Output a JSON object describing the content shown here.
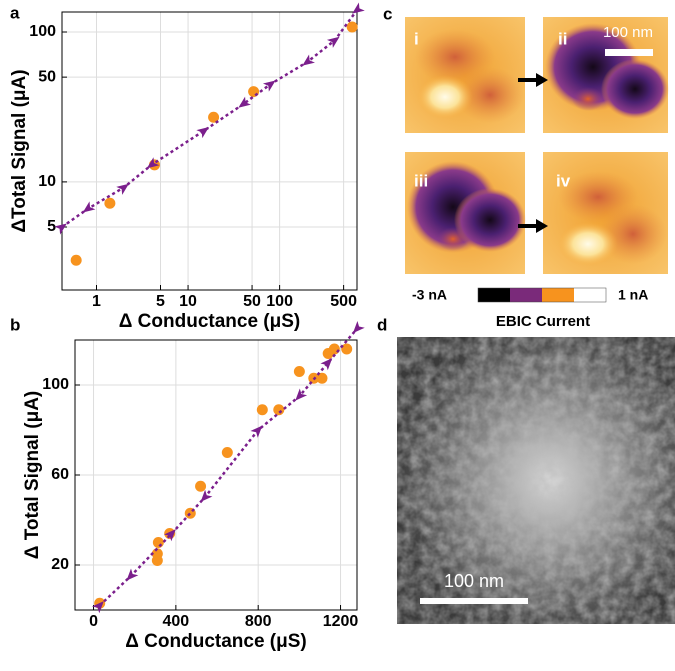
{
  "chart_data": [
    {
      "type": "scatter",
      "panel": "a",
      "xlabel": "Δ Conductance (μS)",
      "ylabel": "ΔTotal Signal (μA)",
      "log_x": true,
      "log_y": true,
      "grid": true,
      "xlim": [
        0.42,
        700
      ],
      "ylim": [
        1.9,
        136
      ],
      "xticks": [
        1,
        5,
        10,
        50,
        100,
        500
      ],
      "yticks": [
        5,
        10,
        50,
        100
      ],
      "series": [
        {
          "color": "#f7931e",
          "x": [
            0.6,
            1.4,
            4.3,
            19,
            52,
            620
          ],
          "values": [
            3.0,
            7.2,
            13,
            27,
            40,
            108
          ]
        },
        {
          "color": "#7b1f8c",
          "style": "dashed-arrows",
          "x": [
            0.42,
            0.8,
            2,
            4,
            15,
            40,
            80,
            200,
            400,
            700
          ],
          "values": [
            5,
            6.6,
            9.2,
            13,
            22,
            33,
            45,
            63,
            88,
            140
          ]
        }
      ]
    },
    {
      "type": "scatter",
      "panel": "b",
      "xlabel": "Δ Conductance (μS)",
      "ylabel": "Δ Total Signal (μA)",
      "log_x": false,
      "log_y": false,
      "grid": true,
      "xlim": [
        -90,
        1280
      ],
      "ylim": [
        0,
        120
      ],
      "xticks": [
        0,
        400,
        800,
        1200
      ],
      "yticks": [
        20,
        60,
        100
      ],
      "series": [
        {
          "color": "#f7931e",
          "x": [
            30,
            310,
            310,
            315,
            370,
            470,
            520,
            650,
            820,
            900,
            1000,
            1070,
            1110,
            1140,
            1170,
            1230
          ],
          "values": [
            3,
            25,
            22,
            30,
            34,
            43,
            55,
            70,
            89,
            89,
            106,
            103,
            103,
            114,
            116,
            116
          ]
        },
        {
          "color": "#7b1f8c",
          "style": "dashed-arrows",
          "x": [
            30,
            180,
            380,
            540,
            800,
            1000,
            1140,
            1280
          ],
          "values": [
            2,
            15,
            34,
            50,
            80,
            95,
            110,
            125
          ]
        }
      ]
    }
  ],
  "panel_c": {
    "label": "c",
    "tiles": [
      "i",
      "ii",
      "iii",
      "iv"
    ],
    "scale_bar": "100 nm",
    "cbar_min": "-3 nA",
    "cbar_max": "1 nA",
    "cbar_title": "EBIC Current"
  },
  "panel_d": {
    "label": "d",
    "scale_bar": "100 nm"
  }
}
